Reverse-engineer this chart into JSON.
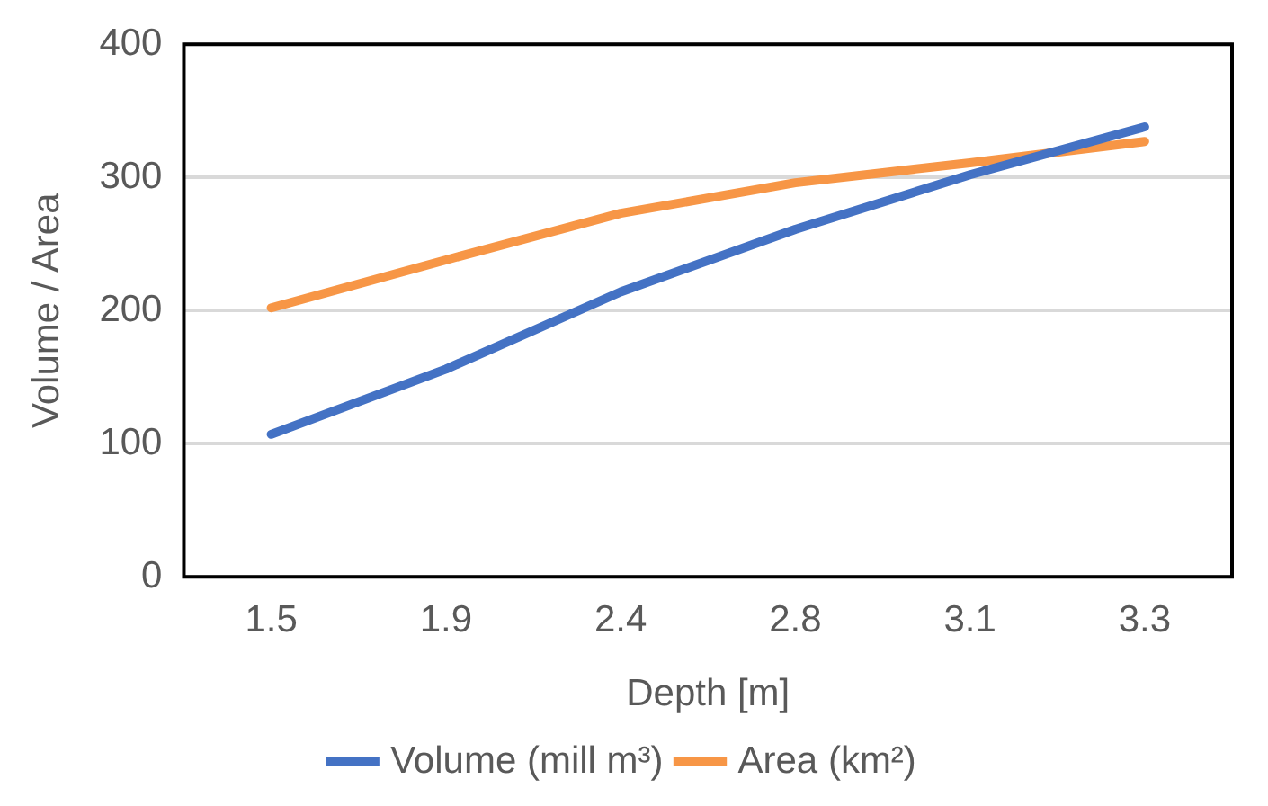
{
  "chart_data": {
    "type": "line",
    "xlabel": "Depth [m]",
    "ylabel": "Volume / Area",
    "categories": [
      "1.5",
      "1.9",
      "2.4",
      "2.8",
      "3.1",
      "3.3"
    ],
    "series": [
      {
        "name": "Volume (mill m³)",
        "color": "#4472c4",
        "values": [
          107,
          156,
          214,
          261,
          302,
          338
        ]
      },
      {
        "name": "Area (km²)",
        "color": "#f79646",
        "values": [
          202,
          238,
          273,
          296,
          311,
          327
        ]
      }
    ],
    "ylim": [
      0,
      400
    ],
    "yticks": [
      0,
      100,
      200,
      300,
      400
    ],
    "grid": "y",
    "legend": "bottom",
    "marker": "none",
    "line_style": "solid"
  }
}
